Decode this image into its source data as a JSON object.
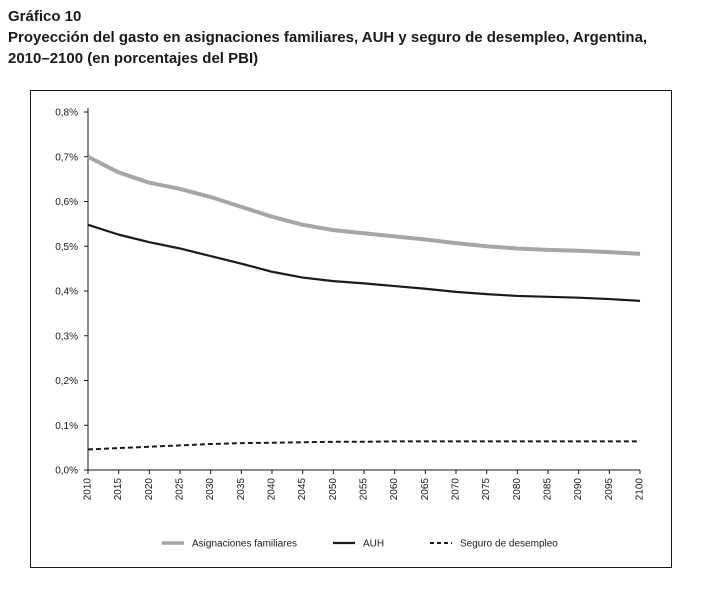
{
  "figure": {
    "label": "Gráfico 10",
    "title_line1": "Proyección del gasto en asignaciones familiares, AUH y seguro de desempleo, Argentina,",
    "title_line2": "2010–2100 (en porcentajes del PBI)"
  },
  "chart_data": {
    "type": "line",
    "title": "Proyección del gasto en asignaciones familiares, AUH y seguro de desempleo, Argentina, 2010–2100 (en porcentajes del PBI)",
    "xlabel": "",
    "ylabel": "",
    "x": [
      2010,
      2015,
      2020,
      2025,
      2030,
      2035,
      2040,
      2045,
      2050,
      2055,
      2060,
      2065,
      2070,
      2075,
      2080,
      2085,
      2090,
      2095,
      2100
    ],
    "x_tick_labels": [
      "2010",
      "2015",
      "2020",
      "2025",
      "2030",
      "2035",
      "2040",
      "2045",
      "2050",
      "2055",
      "2060",
      "2065",
      "2070",
      "2075",
      "2080",
      "2085",
      "2090",
      "2095",
      "2100"
    ],
    "y_ticks": [
      0.0,
      0.1,
      0.2,
      0.3,
      0.4,
      0.5,
      0.6,
      0.7,
      0.8
    ],
    "y_tick_labels": [
      "0,0%",
      "0,1%",
      "0,2%",
      "0,3%",
      "0,4%",
      "0,5%",
      "0,6%",
      "0,7%",
      "0,8%"
    ],
    "ylim": [
      0,
      0.8
    ],
    "grid": false,
    "legend_position": "bottom",
    "series": [
      {
        "name": "Asignaciones familiares",
        "color": "#a6a6a6",
        "style": "solid-thick",
        "values": [
          0.7,
          0.665,
          0.642,
          0.628,
          0.61,
          0.588,
          0.566,
          0.548,
          0.536,
          0.529,
          0.522,
          0.515,
          0.507,
          0.5,
          0.495,
          0.492,
          0.49,
          0.487,
          0.483
        ]
      },
      {
        "name": "AUH",
        "color": "#1a1a1a",
        "style": "solid",
        "values": [
          0.548,
          0.526,
          0.509,
          0.495,
          0.478,
          0.461,
          0.443,
          0.43,
          0.422,
          0.417,
          0.411,
          0.405,
          0.398,
          0.393,
          0.389,
          0.387,
          0.385,
          0.382,
          0.378
        ]
      },
      {
        "name": "Seguro de desempleo",
        "color": "#1a1a1a",
        "style": "dashed",
        "values": [
          0.046,
          0.049,
          0.052,
          0.055,
          0.058,
          0.06,
          0.061,
          0.062,
          0.063,
          0.063,
          0.064,
          0.064,
          0.064,
          0.064,
          0.064,
          0.064,
          0.064,
          0.064,
          0.064
        ]
      }
    ]
  }
}
